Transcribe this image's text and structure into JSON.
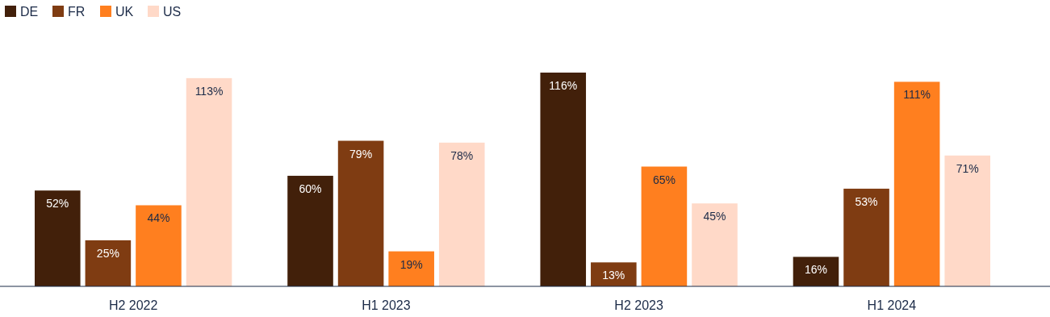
{
  "chart_data": {
    "type": "bar",
    "categories": [
      "H2 2022",
      "H1 2023",
      "H2 2023",
      "H1 2024"
    ],
    "series": [
      {
        "name": "DE",
        "color": "#42200a",
        "values": [
          52,
          60,
          116,
          16
        ],
        "value_labels": [
          "52%",
          "60%",
          "116%",
          "16%"
        ]
      },
      {
        "name": "FR",
        "color": "#7f3c12",
        "values": [
          25,
          79,
          13,
          53
        ],
        "value_labels": [
          "25%",
          "79%",
          "13%",
          "53%"
        ]
      },
      {
        "name": "UK",
        "color": "#ff7f1f",
        "values": [
          44,
          19,
          65,
          111
        ],
        "value_labels": [
          "44%",
          "19%",
          "65%",
          "111%"
        ]
      },
      {
        "name": "US",
        "color": "#ffd9c8",
        "values": [
          113,
          78,
          45,
          71
        ],
        "value_labels": [
          "113%",
          "78%",
          "45%",
          "71%"
        ]
      }
    ],
    "legend": "top left"
  }
}
